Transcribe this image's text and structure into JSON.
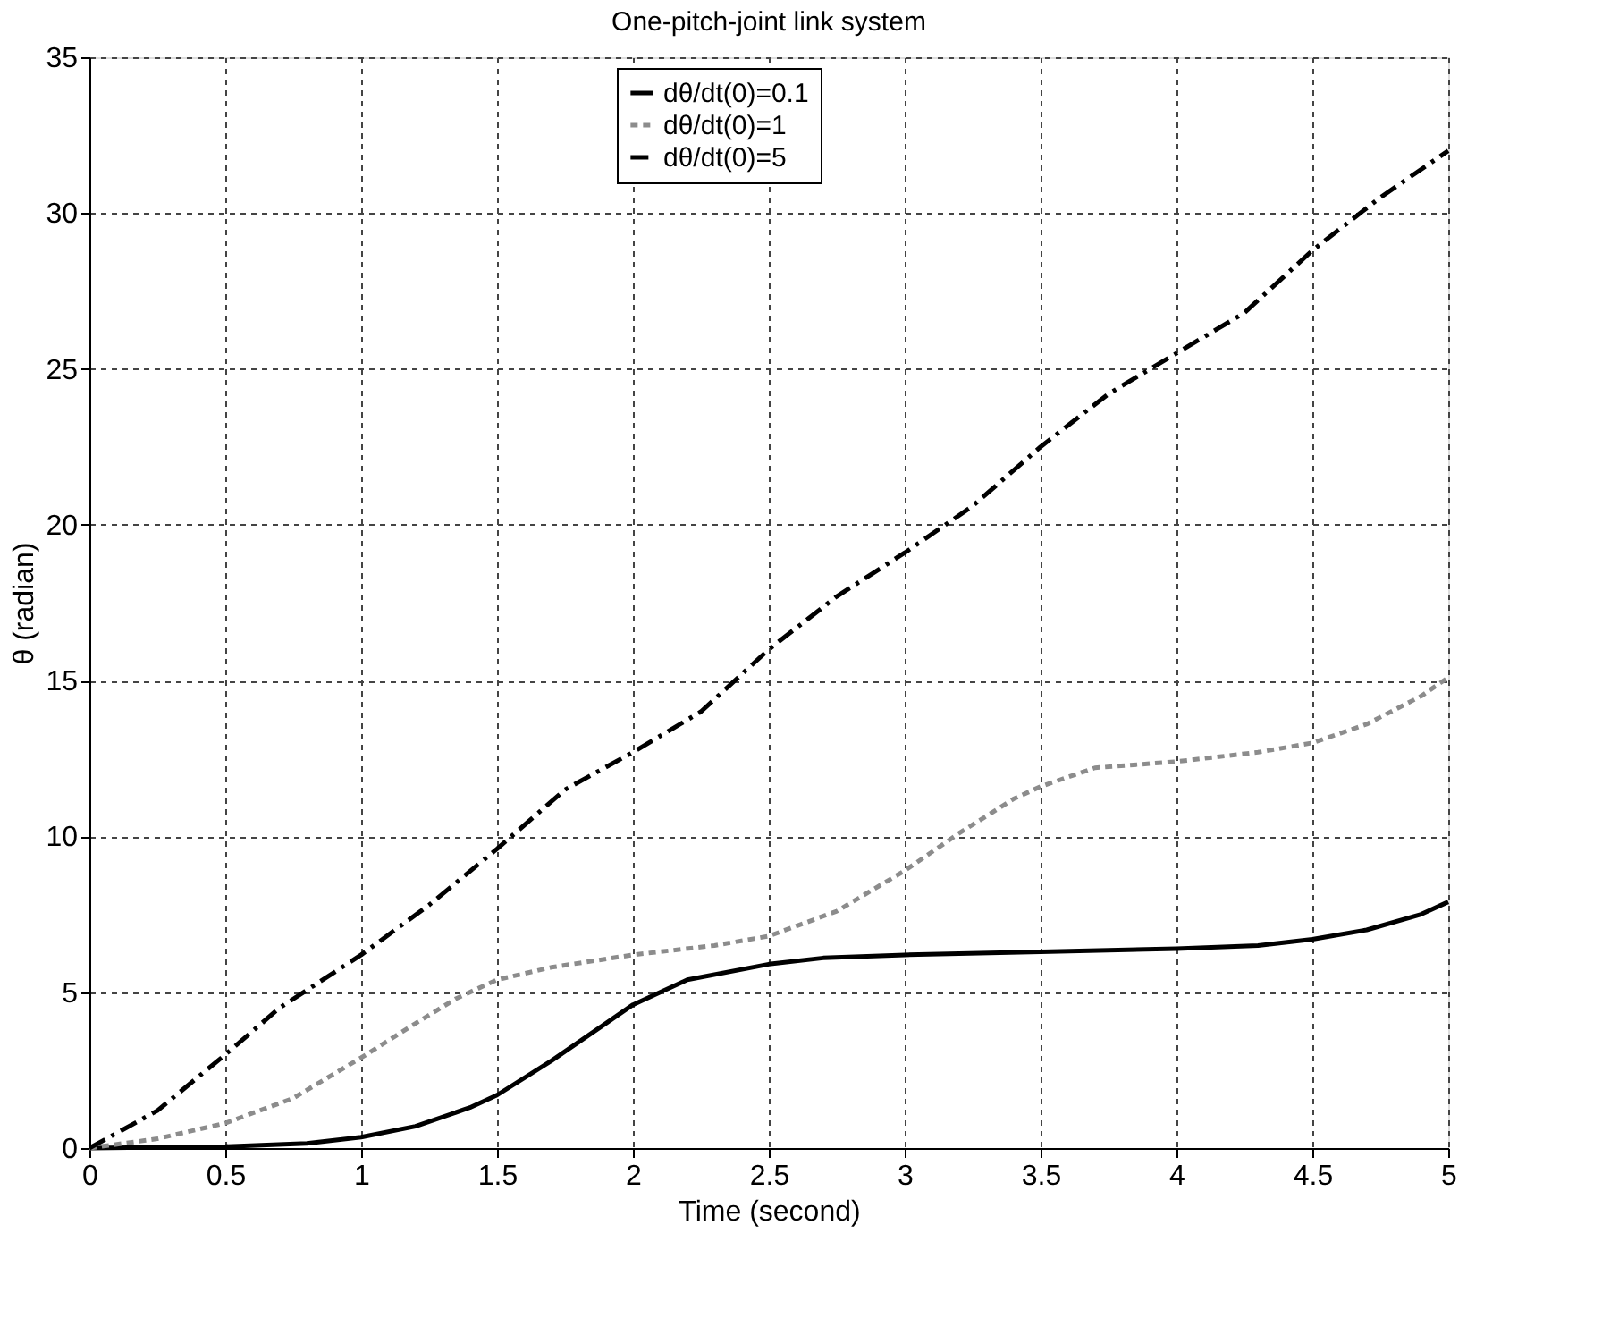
{
  "chart_data": {
    "type": "line",
    "title": "One-pitch-joint link system",
    "xlabel": "Time (second)",
    "ylabel": "θ (radian)",
    "xlim": [
      0,
      5
    ],
    "xticks": [
      0,
      0.5,
      1,
      1.5,
      2,
      2.5,
      3,
      3.5,
      4,
      4.5,
      5
    ],
    "ylim": [
      0,
      35
    ],
    "yticks": [
      0,
      5,
      10,
      15,
      20,
      25,
      30,
      35
    ],
    "grid": true,
    "legend": "top",
    "marker": "none",
    "series": [
      {
        "name": "dθ/dt(0)=0.1",
        "color": "#000000",
        "line_style": "solid",
        "x": [
          0,
          0.5,
          0.8,
          1.0,
          1.2,
          1.4,
          1.5,
          1.7,
          1.9,
          2.0,
          2.2,
          2.5,
          2.7,
          3,
          3.5,
          4,
          4.3,
          4.5,
          4.7,
          4.9,
          5
        ],
        "values": [
          0,
          0.05,
          0.15,
          0.35,
          0.7,
          1.3,
          1.7,
          2.8,
          4.0,
          4.6,
          5.4,
          5.9,
          6.1,
          6.2,
          6.3,
          6.4,
          6.5,
          6.7,
          7.0,
          7.5,
          7.9
        ]
      },
      {
        "name": "dθ/dt(0)=1",
        "color": "#8c8c8c",
        "line_style": "dotted",
        "x": [
          0,
          0.25,
          0.5,
          0.75,
          1,
          1.2,
          1.35,
          1.5,
          1.7,
          2,
          2.3,
          2.5,
          2.75,
          3,
          3.2,
          3.4,
          3.5,
          3.7,
          4,
          4.3,
          4.5,
          4.7,
          4.9,
          5
        ],
        "values": [
          0,
          0.3,
          0.8,
          1.6,
          2.9,
          4.0,
          4.8,
          5.4,
          5.8,
          6.2,
          6.5,
          6.8,
          7.6,
          8.9,
          10.1,
          11.2,
          11.6,
          12.2,
          12.4,
          12.7,
          13.0,
          13.6,
          14.5,
          15.1
        ]
      },
      {
        "name": "dθ/dt(0)=5",
        "color": "#000000",
        "line_style": "dashed",
        "x": [
          0,
          0.25,
          0.5,
          0.7,
          1,
          1.25,
          1.5,
          1.75,
          2,
          2.25,
          2.5,
          2.75,
          3,
          3.25,
          3.5,
          3.75,
          4,
          4.25,
          4.5,
          4.75,
          5
        ],
        "values": [
          0,
          1.2,
          3.0,
          4.5,
          6.2,
          7.8,
          9.6,
          11.5,
          12.7,
          14.0,
          16.0,
          17.7,
          19.1,
          20.6,
          22.5,
          24.2,
          25.5,
          26.8,
          28.8,
          30.5,
          32.0
        ]
      }
    ]
  }
}
